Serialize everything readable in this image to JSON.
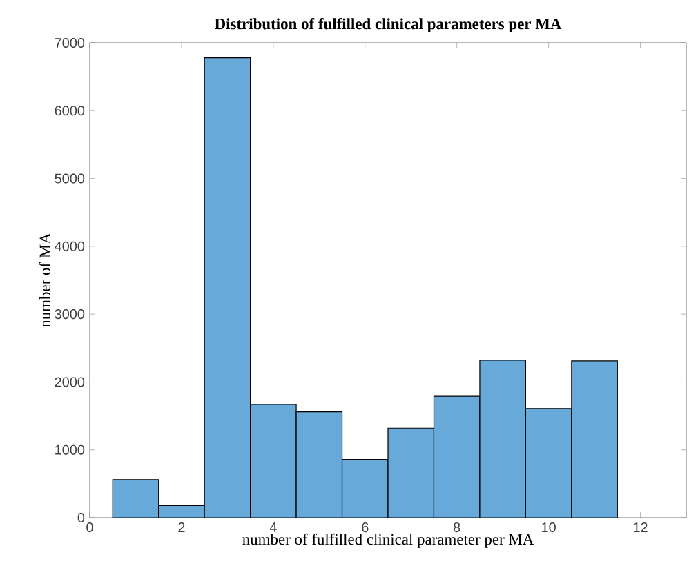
{
  "chart_data": {
    "type": "histogram",
    "title": "Distribution of fulfilled clinical parameters per MA",
    "xlabel": "number of fulfilled clinical parameter per MA",
    "ylabel": "number of MA",
    "bins": [
      0.5,
      1.5,
      2.5,
      3.5,
      4.5,
      5.5,
      6.5,
      7.5,
      8.5,
      9.5,
      10.5,
      11.5
    ],
    "values": [
      560,
      180,
      6780,
      1670,
      1560,
      860,
      1320,
      1790,
      2320,
      1610,
      2310
    ],
    "color": "#67a9d8",
    "xlim": [
      0,
      13
    ],
    "xticks": [
      0,
      2,
      4,
      6,
      8,
      10,
      12
    ],
    "ylim": [
      0,
      7000
    ],
    "yticks": [
      0,
      1000,
      2000,
      3000,
      4000,
      5000,
      6000,
      7000
    ]
  }
}
